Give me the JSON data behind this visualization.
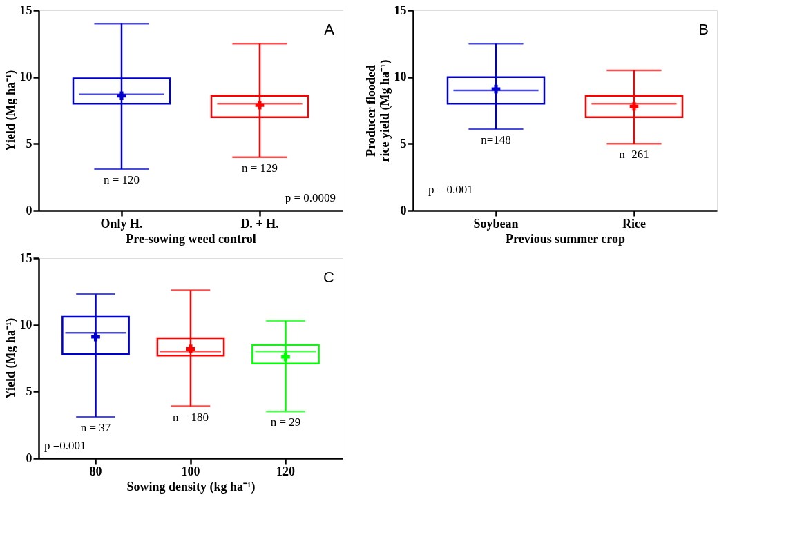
{
  "chart_data": [
    {
      "type": "box",
      "categories": [
        "Only H.",
        "D. + H."
      ],
      "colors": [
        "#0000cc",
        "#ff0000"
      ],
      "xlabel": "Pre-sowing weed control",
      "ylabel": "Yield (Mg ha⁻¹)",
      "ylim": [
        0,
        15
      ],
      "yticks": [
        0,
        5,
        10,
        15
      ],
      "grid": false,
      "legend": false,
      "boxes": [
        {
          "low": 3.1,
          "q1": 8.0,
          "median": 8.7,
          "q3": 9.9,
          "high": 14.0,
          "mean": 8.6
        },
        {
          "low": 4.0,
          "q1": 7.0,
          "median": 8.0,
          "q3": 8.6,
          "high": 12.5,
          "mean": 7.9
        }
      ],
      "annotations": [
        "n = 120",
        "n = 129",
        "A",
        "p = 0.0009"
      ]
    },
    {
      "type": "box",
      "categories": [
        "Soybean",
        "Rice"
      ],
      "colors": [
        "#0000cc",
        "#ff0000"
      ],
      "xlabel": "Previous summer crop",
      "ylabel": "Producer flooded\nrice yield (Mg ha⁻¹)",
      "ylim": [
        0,
        15
      ],
      "yticks": [
        0,
        5,
        10,
        15
      ],
      "grid": false,
      "legend": false,
      "boxes": [
        {
          "low": 6.1,
          "q1": 8.0,
          "median": 9.0,
          "q3": 10.0,
          "high": 12.5,
          "mean": 9.1
        },
        {
          "low": 5.0,
          "q1": 7.0,
          "median": 8.0,
          "q3": 8.6,
          "high": 10.5,
          "mean": 7.8
        }
      ],
      "annotations": [
        "n=148",
        "n=261",
        "B",
        "p = 0.001"
      ]
    },
    {
      "type": "box",
      "categories": [
        "80",
        "100",
        "120"
      ],
      "colors": [
        "#0000cc",
        "#ff0000",
        "#00ff00"
      ],
      "xlabel": "Sowing density (kg ha⁻¹)",
      "ylabel": "Yield (Mg ha⁻¹)",
      "ylim": [
        0,
        15
      ],
      "yticks": [
        0,
        5,
        10,
        15
      ],
      "grid": false,
      "legend": false,
      "boxes": [
        {
          "low": 3.1,
          "q1": 7.8,
          "median": 9.4,
          "q3": 10.6,
          "high": 12.3,
          "mean": 9.1
        },
        {
          "low": 3.9,
          "q1": 7.7,
          "median": 8.0,
          "q3": 9.0,
          "high": 12.6,
          "mean": 8.2
        },
        {
          "low": 3.5,
          "q1": 7.1,
          "median": 8.0,
          "q3": 8.5,
          "high": 10.3,
          "mean": 7.6
        }
      ],
      "annotations": [
        "n = 37",
        "n = 180",
        "n = 29",
        "C",
        "p =0.001"
      ]
    }
  ]
}
